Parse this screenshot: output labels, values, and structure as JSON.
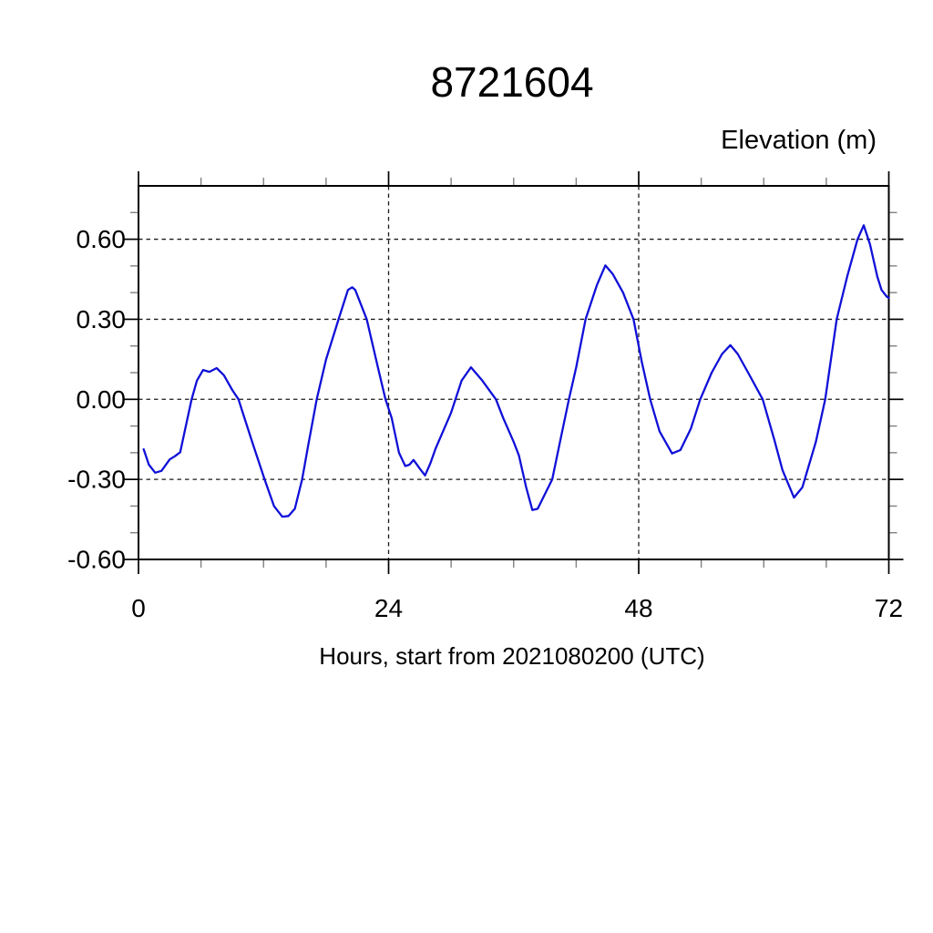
{
  "figure": {
    "background_color": "#ffffff",
    "frame_color": "#000000",
    "grid_style": "dashed"
  },
  "chart_data": {
    "type": "line",
    "title": "8721604",
    "ylabel": "Elevation (m)",
    "xlabel": "Hours, start from 2021080200 (UTC)",
    "xlim": [
      0,
      72
    ],
    "ylim": [
      -0.6,
      0.8
    ],
    "x_major_ticks": [
      0,
      24,
      48,
      72
    ],
    "x_tick_labels": [
      "0",
      "24",
      "48",
      "72"
    ],
    "x_minor_tick_interval": 6,
    "y_major_ticks": [
      -0.6,
      -0.3,
      0.0,
      0.3,
      0.6
    ],
    "y_tick_labels": [
      "-0.60",
      "-0.30",
      "0.00",
      "0.30",
      "0.60"
    ],
    "y_minor_tick_interval": 0.1,
    "x_gridlines": [
      24,
      48
    ],
    "y_gridlines": [
      -0.6,
      -0.3,
      0.0,
      0.3,
      0.6
    ],
    "legend_position": "none",
    "series": [
      {
        "name": "elevation",
        "color": "#1010d8",
        "line_width": 2.3,
        "points": [
          [
            0.5,
            -0.187
          ],
          [
            1.0,
            -0.245
          ],
          [
            1.6,
            -0.275
          ],
          [
            2.2,
            -0.268
          ],
          [
            3.0,
            -0.225
          ],
          [
            3.5,
            -0.213
          ],
          [
            4.0,
            -0.198
          ],
          [
            4.6,
            -0.09
          ],
          [
            5.1,
            0.0
          ],
          [
            5.6,
            0.07
          ],
          [
            6.2,
            0.11
          ],
          [
            6.8,
            0.103
          ],
          [
            7.5,
            0.117
          ],
          [
            8.2,
            0.09
          ],
          [
            9.0,
            0.035
          ],
          [
            9.6,
            0.0
          ],
          [
            10.0,
            -0.05
          ],
          [
            11.0,
            -0.17
          ],
          [
            12.1,
            -0.3
          ],
          [
            13.0,
            -0.4
          ],
          [
            13.8,
            -0.44
          ],
          [
            14.4,
            -0.437
          ],
          [
            15.0,
            -0.41
          ],
          [
            15.7,
            -0.3
          ],
          [
            16.3,
            -0.17
          ],
          [
            17.1,
            0.0
          ],
          [
            18.0,
            0.15
          ],
          [
            19.2,
            0.3
          ],
          [
            20.1,
            0.41
          ],
          [
            20.5,
            0.42
          ],
          [
            20.8,
            0.41
          ],
          [
            21.9,
            0.3
          ],
          [
            23.0,
            0.115
          ],
          [
            23.7,
            0.0
          ],
          [
            24.3,
            -0.07
          ],
          [
            25.0,
            -0.2
          ],
          [
            25.6,
            -0.25
          ],
          [
            26.0,
            -0.245
          ],
          [
            26.4,
            -0.227
          ],
          [
            27.0,
            -0.26
          ],
          [
            27.5,
            -0.285
          ],
          [
            28.0,
            -0.24
          ],
          [
            28.5,
            -0.185
          ],
          [
            29.0,
            -0.14
          ],
          [
            30.0,
            -0.05
          ],
          [
            31.0,
            0.07
          ],
          [
            31.9,
            0.12
          ],
          [
            33.0,
            0.07
          ],
          [
            34.3,
            0.0
          ],
          [
            35.0,
            -0.07
          ],
          [
            36.0,
            -0.16
          ],
          [
            36.5,
            -0.21
          ],
          [
            37.2,
            -0.33
          ],
          [
            37.8,
            -0.415
          ],
          [
            38.3,
            -0.41
          ],
          [
            39.7,
            -0.3
          ],
          [
            40.5,
            -0.15
          ],
          [
            41.3,
            0.0
          ],
          [
            42.0,
            0.12
          ],
          [
            42.9,
            0.3
          ],
          [
            44.0,
            0.43
          ],
          [
            44.8,
            0.502
          ],
          [
            45.5,
            0.47
          ],
          [
            46.5,
            0.4
          ],
          [
            47.5,
            0.3
          ],
          [
            48.3,
            0.14
          ],
          [
            49.1,
            0.0
          ],
          [
            50.0,
            -0.12
          ],
          [
            51.2,
            -0.203
          ],
          [
            52.0,
            -0.19
          ],
          [
            53.0,
            -0.11
          ],
          [
            53.9,
            0.0
          ],
          [
            55.0,
            0.1
          ],
          [
            56.0,
            0.17
          ],
          [
            56.8,
            0.203
          ],
          [
            57.5,
            0.17
          ],
          [
            58.5,
            0.1
          ],
          [
            59.9,
            0.0
          ],
          [
            61.0,
            -0.15
          ],
          [
            61.8,
            -0.265
          ],
          [
            62.9,
            -0.368
          ],
          [
            63.7,
            -0.33
          ],
          [
            65.0,
            -0.16
          ],
          [
            65.9,
            0.0
          ],
          [
            67.0,
            0.3
          ],
          [
            68.0,
            0.46
          ],
          [
            69.0,
            0.6
          ],
          [
            69.6,
            0.652
          ],
          [
            70.2,
            0.58
          ],
          [
            70.9,
            0.46
          ],
          [
            71.3,
            0.41
          ],
          [
            71.8,
            0.385
          ],
          [
            72.0,
            0.38
          ]
        ]
      }
    ]
  }
}
